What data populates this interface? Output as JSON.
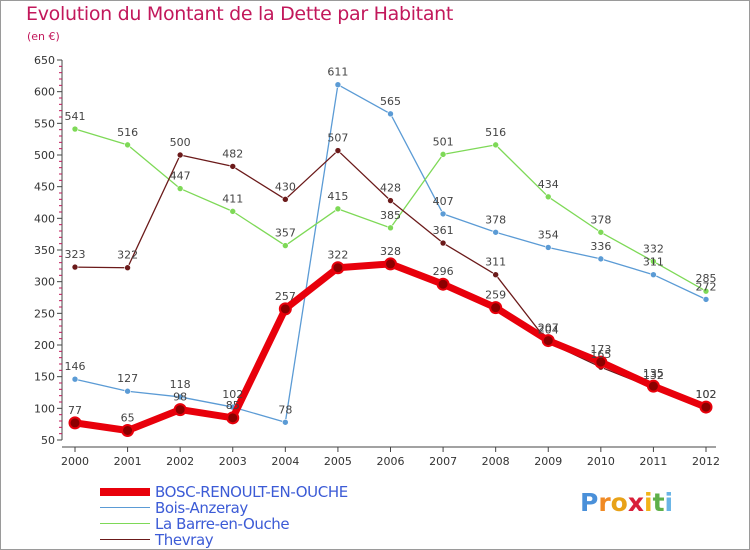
{
  "title": "Evolution du Montant de la Dette par Habitant",
  "subtitle": "(en €)",
  "logo": {
    "letters": [
      "P",
      "r",
      "o",
      "x",
      "i",
      "t",
      "i"
    ],
    "colors": [
      "#4a90d9",
      "#f08a24",
      "#e8a218",
      "#d8203a",
      "#f2b318",
      "#5fb04a",
      "#69b4e6"
    ]
  },
  "chart_data": {
    "type": "line",
    "x": [
      "2000",
      "2001",
      "2002",
      "2003",
      "2004",
      "2005",
      "2006",
      "2007",
      "2008",
      "2009",
      "2010",
      "2011",
      "2012"
    ],
    "ylim": [
      50,
      650
    ],
    "yticks": [
      50,
      100,
      150,
      200,
      250,
      300,
      350,
      400,
      450,
      500,
      550,
      600,
      650
    ],
    "grid": false,
    "legend_position": "bottom-left",
    "series": [
      {
        "name": "BOSC-RENOULT-EN-OUCHE",
        "color": "#e8000b",
        "bold": true,
        "values": [
          77,
          65,
          98,
          85,
          257,
          322,
          328,
          296,
          259,
          207,
          173,
          135,
          102
        ],
        "labels": [
          "77",
          "65",
          "98",
          "85",
          "257",
          "322",
          "328",
          "296",
          "259",
          "207",
          "173",
          "135",
          "102"
        ]
      },
      {
        "name": "Bois-Anzeray",
        "color": "#5b9bd5",
        "values": [
          146,
          127,
          118,
          102,
          78,
          611,
          565,
          407,
          378,
          354,
          336,
          311,
          272
        ],
        "labels": [
          "146",
          "127",
          "118",
          "102",
          "78",
          "611",
          "565",
          "407",
          "378",
          "354",
          "336",
          "311",
          "272"
        ]
      },
      {
        "name": "La Barre-en-Ouche",
        "color": "#7ed957",
        "values": [
          541,
          516,
          447,
          411,
          357,
          415,
          385,
          501,
          516,
          434,
          378,
          332,
          285
        ],
        "labels": [
          "541",
          "516",
          "447",
          "411",
          "357",
          "415",
          "385",
          "501",
          "516",
          "434",
          "378",
          "332",
          "285"
        ]
      },
      {
        "name": "Thevray",
        "color": "#6b1a1a",
        "values": [
          323,
          322,
          500,
          482,
          430,
          507,
          428,
          361,
          311,
          204,
          165,
          132,
          102
        ],
        "labels": [
          "323",
          "322",
          "500",
          "482",
          "430",
          "507",
          "428",
          "361",
          "311",
          "204",
          "165",
          "132",
          "102"
        ]
      }
    ]
  }
}
